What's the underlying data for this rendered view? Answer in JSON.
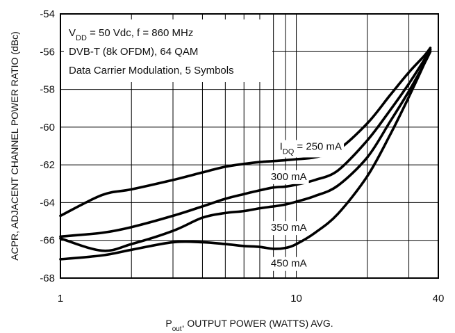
{
  "chart_data": {
    "type": "line",
    "x_scale": "log",
    "xlim": [
      1,
      40
    ],
    "ylim": [
      -68,
      -54
    ],
    "x_ticks": [
      {
        "value": 1,
        "label": "1"
      },
      {
        "value": 10,
        "label": "10"
      },
      {
        "value": 40,
        "label": "40"
      }
    ],
    "y_ticks": [
      {
        "value": -54,
        "label": "-54"
      },
      {
        "value": -56,
        "label": "-56"
      },
      {
        "value": -58,
        "label": "-58"
      },
      {
        "value": -60,
        "label": "-60"
      },
      {
        "value": -62,
        "label": "-62"
      },
      {
        "value": -64,
        "label": "-64"
      },
      {
        "value": -66,
        "label": "-66"
      },
      {
        "value": -68,
        "label": "-68"
      }
    ],
    "grid": true,
    "xlabel_main": "P",
    "xlabel_sub": "out",
    "xlabel_rest": ", OUTPUT POWER (WATTS) AVG.",
    "ylabel": "ACPR, ADJACENT CHANNEL POWER RATIO (dBc)",
    "annotation": {
      "line1_main": "V",
      "line1_sub": "DD",
      "line1_rest": " = 50 Vdc, f = 860 MHz",
      "line2": "DVB-T (8k OFDM), 64 QAM",
      "line3": "Data Carrier Modulation, 5 Symbols"
    },
    "series": [
      {
        "label_main": "I",
        "label_sub": "DQ",
        "label_rest": " = 250 mA",
        "label_at": [
          8.5,
          -61.2
        ],
        "x": [
          1,
          1.5,
          2,
          3,
          4,
          5,
          6,
          7,
          8,
          9,
          10,
          12,
          15,
          20,
          25,
          30,
          35,
          37
        ],
        "y": [
          -64.7,
          -63.6,
          -63.3,
          -62.8,
          -62.4,
          -62.1,
          -61.95,
          -61.85,
          -61.8,
          -61.75,
          -61.7,
          -61.6,
          -61.2,
          -59.8,
          -58.3,
          -57.1,
          -56.2,
          -55.8
        ]
      },
      {
        "label_main": "300 mA",
        "label_sub": "",
        "label_rest": "",
        "label_at": [
          7.8,
          -62.8
        ],
        "x": [
          1,
          1.5,
          2,
          3,
          4,
          5,
          6,
          7,
          8,
          9,
          10,
          12,
          15,
          20,
          25,
          30,
          35,
          37
        ],
        "y": [
          -65.8,
          -65.6,
          -65.3,
          -64.7,
          -64.2,
          -63.8,
          -63.55,
          -63.35,
          -63.2,
          -63.15,
          -63.05,
          -62.8,
          -62.3,
          -60.7,
          -59.1,
          -57.7,
          -56.4,
          -55.9
        ]
      },
      {
        "label_main": "350 mA",
        "label_sub": "",
        "label_rest": "",
        "label_at": [
          7.8,
          -65.5
        ],
        "x": [
          1,
          1.5,
          2,
          3,
          4,
          5,
          6,
          7,
          8,
          9,
          10,
          12,
          15,
          20,
          25,
          30,
          35,
          37
        ],
        "y": [
          -65.9,
          -66.55,
          -66.2,
          -65.5,
          -64.8,
          -64.55,
          -64.45,
          -64.3,
          -64.2,
          -64.1,
          -63.95,
          -63.65,
          -63.1,
          -61.6,
          -59.7,
          -58.1,
          -56.6,
          -56.0
        ]
      },
      {
        "label_main": "450 mA",
        "label_sub": "",
        "label_rest": "",
        "label_at": [
          7.8,
          -67.4
        ],
        "x": [
          1,
          1.5,
          2,
          3,
          4,
          5,
          6,
          7,
          8,
          9,
          10,
          12,
          15,
          20,
          25,
          30,
          35,
          37
        ],
        "y": [
          -67.0,
          -66.8,
          -66.5,
          -66.1,
          -66.1,
          -66.2,
          -66.3,
          -66.35,
          -66.45,
          -66.4,
          -66.2,
          -65.6,
          -64.6,
          -62.6,
          -60.4,
          -58.4,
          -56.6,
          -55.9
        ]
      }
    ]
  }
}
